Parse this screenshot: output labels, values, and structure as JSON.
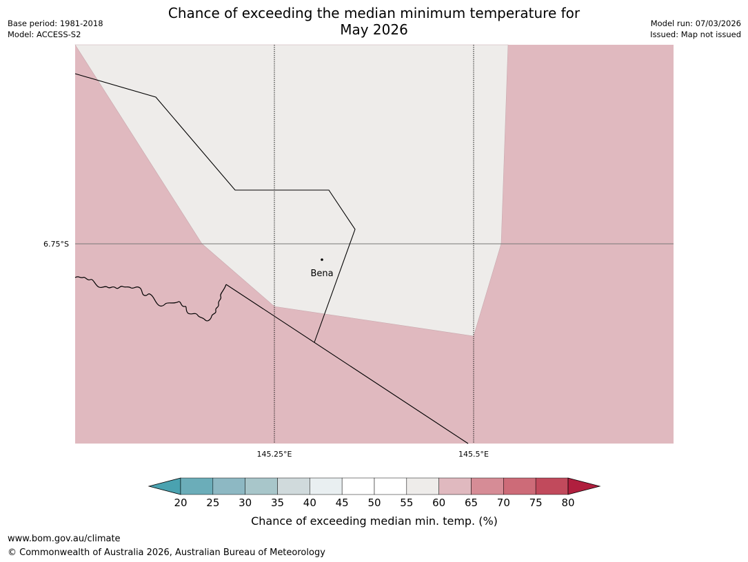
{
  "header": {
    "title_line1": "Chance of exceeding the median minimum temperature for",
    "title_line2": "May 2026",
    "base_period": "Base period: 1981-2018",
    "model": "Model: ACCESS-S2",
    "model_run": "Model run: 07/03/2026",
    "issued": "Issued: Map not issued"
  },
  "map": {
    "lat_label": "6.75°S",
    "lon_labels": [
      "145.25°E",
      "145.5°E"
    ],
    "place_label": "Bena",
    "zones": [
      {
        "name": "above-median-zone",
        "class": "60-65",
        "color": "#e0b9bf"
      },
      {
        "name": "neutral-zone",
        "class": "55-60",
        "color": "#eeecea"
      }
    ]
  },
  "legend": {
    "title": "Chance of exceeding median min. temp. (%)",
    "ticks": [
      "20",
      "25",
      "30",
      "35",
      "40",
      "45",
      "50",
      "55",
      "60",
      "65",
      "70",
      "75",
      "80"
    ],
    "colors": [
      "#6badb9",
      "#8db8c3",
      "#a8c6ca",
      "#d0dadc",
      "#e9eff1",
      "#ffffff",
      "#ffffff",
      "#eeecea",
      "#e0b9bf",
      "#d68c96",
      "#cd6b78",
      "#c14a5c"
    ],
    "under_color": "#4aa2b0",
    "over_color": "#b01f3e"
  },
  "footer": {
    "url": "www.bom.gov.au/climate",
    "copyright": "© Commonwealth of Australia 2026, Australian Bureau of Meteorology"
  }
}
